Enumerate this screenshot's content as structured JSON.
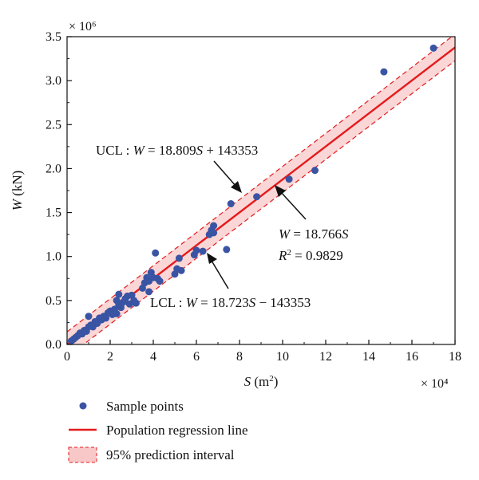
{
  "chart_data": {
    "type": "scatter",
    "x_multiplier_label": "× 10⁴",
    "y_multiplier_label": "× 10⁶",
    "xlabel": {
      "var": "S",
      "unit": " (m",
      "sup": "2",
      "close": ")"
    },
    "ylabel": {
      "var": "W",
      "unit": " (kN)"
    },
    "xlim": [
      0,
      18
    ],
    "ylim": [
      0,
      3.5
    ],
    "x_ticks": [
      0,
      2,
      4,
      6,
      8,
      10,
      12,
      14,
      16,
      18
    ],
    "x_tick_labels": [
      "0",
      "2",
      "4",
      "6",
      "8",
      "10",
      "12",
      "14",
      "16",
      "18"
    ],
    "y_ticks": [
      0,
      0.5,
      1.0,
      1.5,
      2.0,
      2.5,
      3.0,
      3.5
    ],
    "y_tick_labels": [
      "0.0",
      "0.5",
      "1.0",
      "1.5",
      "2.0",
      "2.5",
      "3.0",
      "3.5"
    ],
    "grid": false,
    "regression_line": {
      "slope": 0.18766,
      "intercept": 0.0,
      "color": "#e41a1c"
    },
    "ucl_line": {
      "slope": 0.18809,
      "intercept": 0.143353
    },
    "lcl_line": {
      "slope": 0.18723,
      "intercept": -0.143353
    },
    "band_color": "#f8c8c8",
    "point_color": "#3a54a4",
    "series": [
      {
        "name": "Sample points",
        "points": [
          [
            0.2,
            0.04
          ],
          [
            0.3,
            0.06
          ],
          [
            0.4,
            0.08
          ],
          [
            0.5,
            0.1
          ],
          [
            0.6,
            0.13
          ],
          [
            0.7,
            0.12
          ],
          [
            0.8,
            0.16
          ],
          [
            0.9,
            0.15
          ],
          [
            1.0,
            0.2
          ],
          [
            1.0,
            0.32
          ],
          [
            1.1,
            0.22
          ],
          [
            1.2,
            0.2
          ],
          [
            1.3,
            0.26
          ],
          [
            1.4,
            0.24
          ],
          [
            1.5,
            0.3
          ],
          [
            1.6,
            0.28
          ],
          [
            1.7,
            0.32
          ],
          [
            1.8,
            0.3
          ],
          [
            1.9,
            0.36
          ],
          [
            2.0,
            0.38
          ],
          [
            2.1,
            0.34
          ],
          [
            2.2,
            0.4
          ],
          [
            2.3,
            0.35
          ],
          [
            2.3,
            0.5
          ],
          [
            2.4,
            0.57
          ],
          [
            2.4,
            0.45
          ],
          [
            2.5,
            0.42
          ],
          [
            2.6,
            0.48
          ],
          [
            2.7,
            0.52
          ],
          [
            2.8,
            0.55
          ],
          [
            2.9,
            0.46
          ],
          [
            3.0,
            0.56
          ],
          [
            3.1,
            0.5
          ],
          [
            3.2,
            0.47
          ],
          [
            3.5,
            0.64
          ],
          [
            3.6,
            0.7
          ],
          [
            3.7,
            0.76
          ],
          [
            3.8,
            0.6
          ],
          [
            3.8,
            0.72
          ],
          [
            3.9,
            0.82
          ],
          [
            4.0,
            0.76
          ],
          [
            4.1,
            1.04
          ],
          [
            4.2,
            0.75
          ],
          [
            4.3,
            0.72
          ],
          [
            5.0,
            0.8
          ],
          [
            5.1,
            0.86
          ],
          [
            5.2,
            0.98
          ],
          [
            5.3,
            0.84
          ],
          [
            5.9,
            1.02
          ],
          [
            6.0,
            1.07
          ],
          [
            6.3,
            1.06
          ],
          [
            6.6,
            1.25
          ],
          [
            6.7,
            1.3
          ],
          [
            6.8,
            1.35
          ],
          [
            6.8,
            1.27
          ],
          [
            7.4,
            1.08
          ],
          [
            7.6,
            1.6
          ],
          [
            8.8,
            1.68
          ],
          [
            10.3,
            1.88
          ],
          [
            11.5,
            1.98
          ],
          [
            14.7,
            3.1
          ],
          [
            17.0,
            3.37
          ]
        ]
      }
    ],
    "annotations": {
      "ucl": {
        "pre": "UCL : ",
        "var": "W",
        "eq": " = 18.809",
        "var2": "S",
        "post": " + 143353"
      },
      "lcl": {
        "pre": "LCL : ",
        "var": "W",
        "eq": " = 18.723",
        "var2": "S",
        "post": " − 143353"
      },
      "reg": {
        "var": "W",
        "eq": " = 18.766",
        "var2": "S"
      },
      "r2": {
        "var": "R",
        "sup": "2",
        "post": " = 0.9829"
      }
    },
    "legend": [
      {
        "label": "Sample points",
        "kind": "point"
      },
      {
        "label": "Population regression line",
        "kind": "line"
      },
      {
        "label": "95% prediction interval",
        "kind": "band"
      }
    ]
  }
}
